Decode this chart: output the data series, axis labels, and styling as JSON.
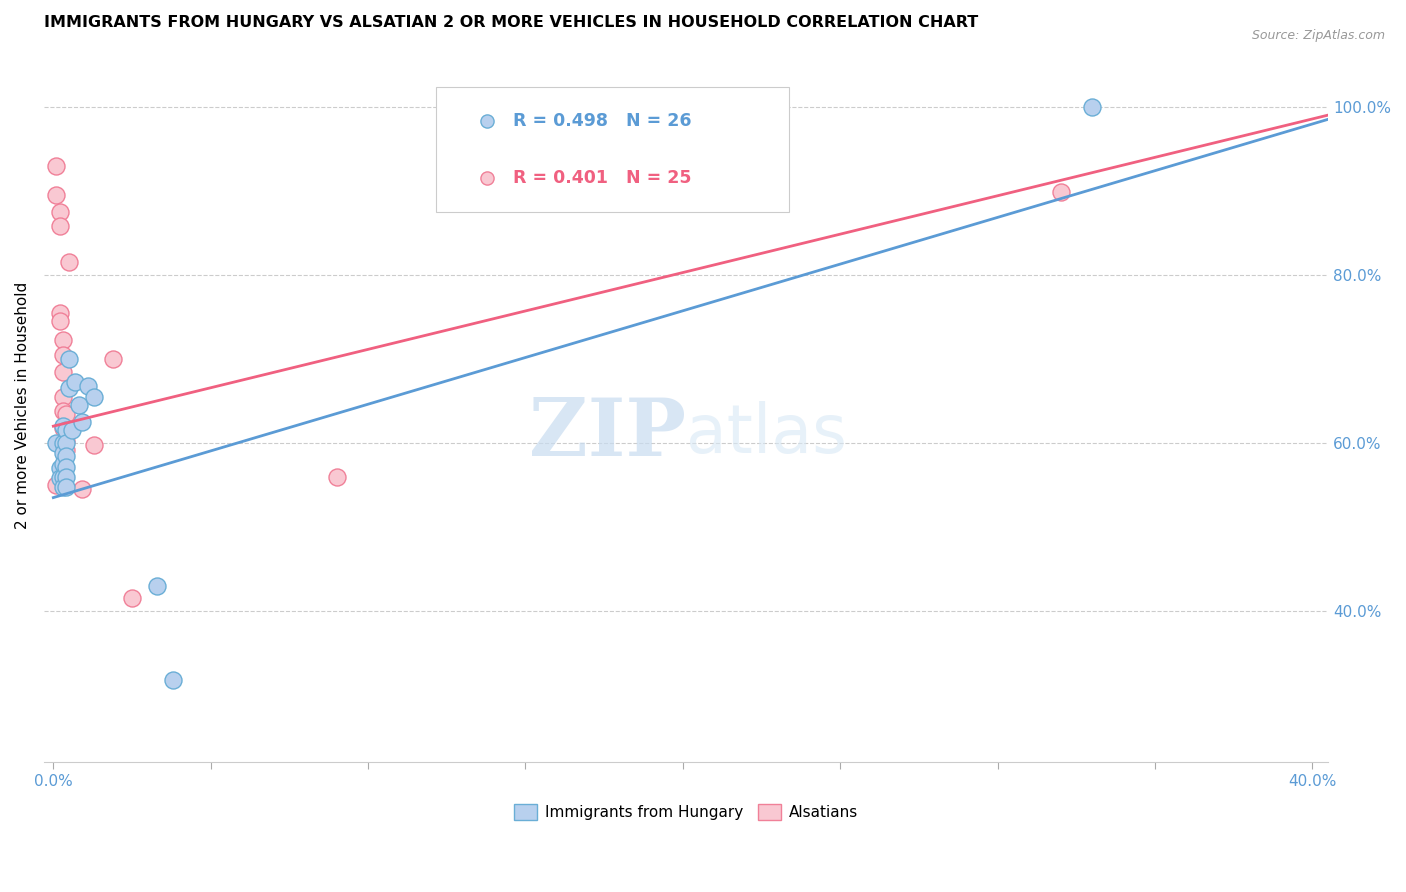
{
  "title": "IMMIGRANTS FROM HUNGARY VS ALSATIAN 2 OR MORE VEHICLES IN HOUSEHOLD CORRELATION CHART",
  "source": "Source: ZipAtlas.com",
  "ylabel": "2 or more Vehicles in Household",
  "ytick_labels": [
    "40.0%",
    "60.0%",
    "80.0%",
    "100.0%"
  ],
  "ytick_values": [
    0.4,
    0.6,
    0.8,
    1.0
  ],
  "xlim": [
    -0.003,
    0.405
  ],
  "ylim": [
    0.22,
    1.07
  ],
  "legend_blue": {
    "R": "0.498",
    "N": "26"
  },
  "legend_pink": {
    "R": "0.401",
    "N": "25"
  },
  "blue_fill": "#b8d0ee",
  "pink_fill": "#f9c8d2",
  "blue_edge": "#6aaed6",
  "pink_edge": "#f08098",
  "blue_line": "#5b9bd5",
  "pink_line": "#f06080",
  "blue_scatter": [
    [
      0.001,
      0.6
    ],
    [
      0.002,
      0.57
    ],
    [
      0.002,
      0.558
    ],
    [
      0.003,
      0.62
    ],
    [
      0.003,
      0.6
    ],
    [
      0.003,
      0.588
    ],
    [
      0.003,
      0.575
    ],
    [
      0.003,
      0.56
    ],
    [
      0.003,
      0.548
    ],
    [
      0.004,
      0.615
    ],
    [
      0.004,
      0.6
    ],
    [
      0.004,
      0.585
    ],
    [
      0.004,
      0.572
    ],
    [
      0.004,
      0.56
    ],
    [
      0.004,
      0.548
    ],
    [
      0.005,
      0.7
    ],
    [
      0.005,
      0.665
    ],
    [
      0.006,
      0.615
    ],
    [
      0.007,
      0.672
    ],
    [
      0.008,
      0.645
    ],
    [
      0.009,
      0.625
    ],
    [
      0.011,
      0.668
    ],
    [
      0.013,
      0.655
    ],
    [
      0.033,
      0.43
    ],
    [
      0.038,
      0.318
    ],
    [
      0.33,
      1.0
    ]
  ],
  "pink_scatter": [
    [
      0.001,
      0.93
    ],
    [
      0.001,
      0.895
    ],
    [
      0.002,
      0.875
    ],
    [
      0.002,
      0.858
    ],
    [
      0.002,
      0.755
    ],
    [
      0.002,
      0.745
    ],
    [
      0.003,
      0.722
    ],
    [
      0.003,
      0.705
    ],
    [
      0.003,
      0.685
    ],
    [
      0.003,
      0.655
    ],
    [
      0.003,
      0.638
    ],
    [
      0.003,
      0.618
    ],
    [
      0.003,
      0.602
    ],
    [
      0.004,
      0.635
    ],
    [
      0.004,
      0.618
    ],
    [
      0.004,
      0.602
    ],
    [
      0.004,
      0.592
    ],
    [
      0.005,
      0.815
    ],
    [
      0.009,
      0.545
    ],
    [
      0.013,
      0.598
    ],
    [
      0.019,
      0.7
    ],
    [
      0.025,
      0.415
    ],
    [
      0.09,
      0.56
    ],
    [
      0.32,
      0.898
    ],
    [
      0.001,
      0.55
    ]
  ],
  "blue_trendline": [
    [
      0.0,
      0.535
    ],
    [
      0.405,
      0.985
    ]
  ],
  "pink_trendline": [
    [
      0.0,
      0.62
    ],
    [
      0.405,
      0.99
    ]
  ],
  "watermark_zip": "ZIP",
  "watermark_atlas": "atlas",
  "figsize": [
    14.06,
    8.92
  ],
  "dpi": 100
}
